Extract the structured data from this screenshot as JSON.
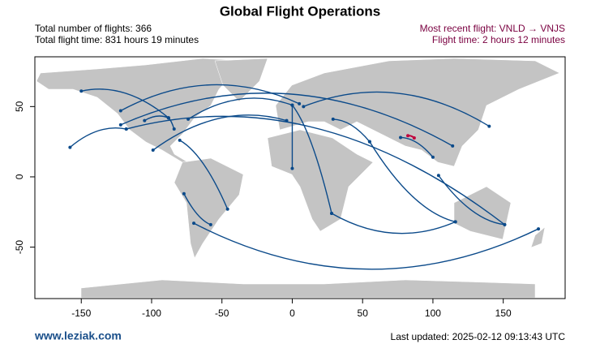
{
  "chart_data": {
    "type": "map",
    "title": "Global Flight Operations",
    "stats": [
      "Total number of flights: 366",
      "Total flight time: 831 hours 19 minutes"
    ],
    "recent": [
      "Most recent flight: VNLD → VNJS",
      "Flight time: 2 hours 12 minutes"
    ],
    "footer_left": "www.leziak.com",
    "footer_right": "Last updated: 2025-02-12 09:13:43 UTC",
    "xlim": [
      -183,
      194
    ],
    "ylim": [
      -86.6,
      85.4
    ],
    "xticks": [
      -150,
      -100,
      -50,
      0,
      50,
      100,
      150
    ],
    "yticks": [
      -50,
      0,
      50
    ],
    "route_color": "#0b4a8a",
    "land_color": "#c4c4c4",
    "highlight_color": "#c0003c",
    "routes": [
      {
        "x": [
          -118,
          151
        ],
        "y": [
          34,
          -34
        ]
      },
      {
        "x": [
          -122,
          114
        ],
        "y": [
          37,
          22
        ]
      },
      {
        "x": [
          -74,
          0
        ],
        "y": [
          41,
          51
        ]
      },
      {
        "x": [
          0,
          28
        ],
        "y": [
          51,
          -26
        ]
      },
      {
        "x": [
          55,
          116
        ],
        "y": [
          25,
          -32
        ]
      },
      {
        "x": [
          -70,
          175
        ],
        "y": [
          -33,
          -37
        ]
      },
      {
        "x": [
          -46,
          -80
        ],
        "y": [
          -23,
          26
        ]
      },
      {
        "x": [
          8,
          140
        ],
        "y": [
          50,
          36
        ]
      },
      {
        "x": [
          -122,
          5
        ],
        "y": [
          47,
          52
        ]
      },
      {
        "x": [
          -158,
          -118
        ],
        "y": [
          21,
          34
        ]
      },
      {
        "x": [
          -99,
          -4
        ],
        "y": [
          19,
          40
        ]
      },
      {
        "x": [
          77,
          100
        ],
        "y": [
          28,
          14
        ]
      },
      {
        "x": [
          104,
          151
        ],
        "y": [
          1,
          -34
        ]
      },
      {
        "x": [
          -150,
          -88
        ],
        "y": [
          61,
          42
        ]
      },
      {
        "x": [
          -77,
          -58
        ],
        "y": [
          -12,
          -34
        ]
      },
      {
        "x": [
          28,
          116
        ],
        "y": [
          -26,
          -32
        ]
      },
      {
        "x": [
          -88,
          -84
        ],
        "y": [
          42,
          34
        ]
      },
      {
        "x": [
          -105,
          -88
        ],
        "y": [
          40,
          42
        ]
      },
      {
        "x": [
          29,
          55
        ],
        "y": [
          41,
          25
        ]
      },
      {
        "x": [
          0,
          0
        ],
        "y": [
          6,
          51
        ]
      }
    ],
    "highlight": {
      "x": [
        86.7,
        82.2
      ],
      "y": [
        27.7,
        29.3
      ]
    }
  }
}
